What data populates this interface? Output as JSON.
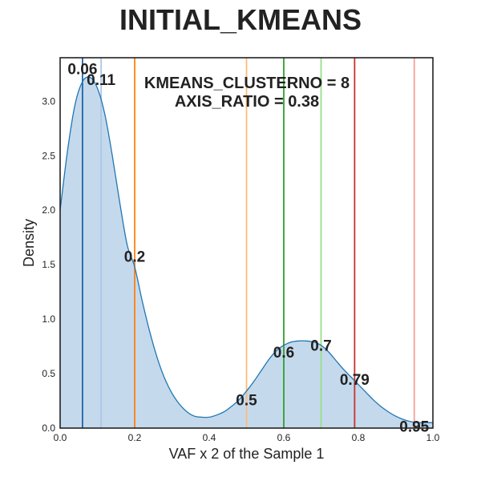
{
  "chart_data": {
    "type": "area",
    "title": "INITIAL_KMEANS",
    "xlabel": "VAF x 2 of the Sample 1",
    "ylabel": "Density",
    "xlim": [
      0.0,
      1.0
    ],
    "ylim": [
      0.0,
      3.4
    ],
    "grid": false,
    "x_ticks": [
      "0.0",
      "0.2",
      "0.4",
      "0.6",
      "0.8",
      "1.0"
    ],
    "y_ticks": [
      "0.0",
      "0.5",
      "1.0",
      "1.5",
      "2.0",
      "2.5",
      "3.0"
    ],
    "annotations": [
      "KMEANS_CLUSTERNO = 8",
      "AXIS_RATIO = 0.38"
    ],
    "density": {
      "x": [
        0.0,
        0.02,
        0.04,
        0.06,
        0.08,
        0.1,
        0.12,
        0.14,
        0.16,
        0.18,
        0.2,
        0.22,
        0.24,
        0.26,
        0.28,
        0.3,
        0.32,
        0.34,
        0.36,
        0.38,
        0.4,
        0.42,
        0.44,
        0.46,
        0.48,
        0.5,
        0.52,
        0.54,
        0.56,
        0.58,
        0.6,
        0.62,
        0.64,
        0.66,
        0.68,
        0.7,
        0.72,
        0.74,
        0.76,
        0.78,
        0.8,
        0.82,
        0.84,
        0.86,
        0.88,
        0.9,
        0.92,
        0.94,
        0.96,
        0.98,
        1.0
      ],
      "y": [
        2.0,
        2.55,
        2.97,
        3.18,
        3.22,
        3.12,
        2.88,
        2.5,
        2.07,
        1.68,
        1.48,
        1.17,
        0.89,
        0.65,
        0.46,
        0.32,
        0.22,
        0.15,
        0.11,
        0.1,
        0.1,
        0.12,
        0.15,
        0.2,
        0.26,
        0.34,
        0.43,
        0.53,
        0.63,
        0.71,
        0.76,
        0.79,
        0.8,
        0.8,
        0.79,
        0.76,
        0.7,
        0.62,
        0.54,
        0.47,
        0.4,
        0.33,
        0.26,
        0.2,
        0.15,
        0.11,
        0.08,
        0.06,
        0.05,
        0.05,
        0.05
      ]
    },
    "vlines": [
      {
        "x": 0.06,
        "label": "0.06",
        "label_y": 3.3,
        "color": "#1f64a6"
      },
      {
        "x": 0.11,
        "label": "0.11",
        "label_y": 3.2,
        "color": "#a9c7e8"
      },
      {
        "x": 0.2,
        "label": "0.2",
        "label_y": 1.58,
        "color": "#ff7f0e"
      },
      {
        "x": 0.5,
        "label": "0.5",
        "label_y": 0.26,
        "color": "#ffbb78"
      },
      {
        "x": 0.6,
        "label": "0.6",
        "label_y": 0.7,
        "color": "#2ca02c"
      },
      {
        "x": 0.7,
        "label": "0.7",
        "label_y": 0.76,
        "color": "#98df8a"
      },
      {
        "x": 0.79,
        "label": "0.79",
        "label_y": 0.45,
        "color": "#c9302c"
      },
      {
        "x": 0.95,
        "label": "0.95",
        "label_y": 0.02,
        "color": "#f4a09a"
      }
    ]
  }
}
